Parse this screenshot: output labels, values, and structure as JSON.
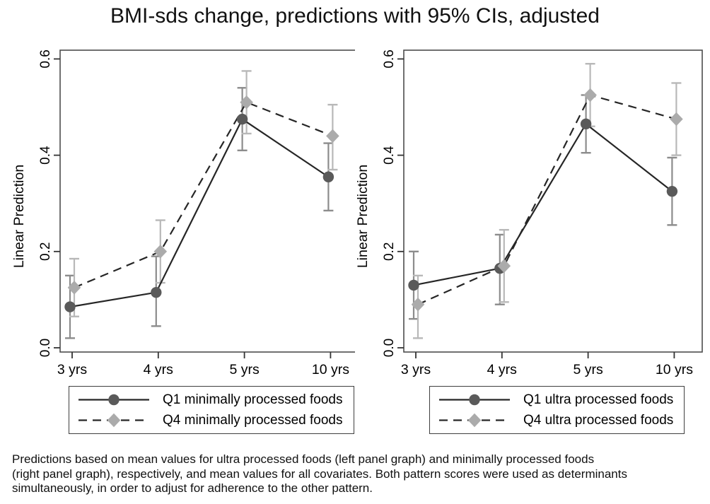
{
  "title": "BMI-sds change, predictions with 95% CIs, adjusted",
  "caption_lines": [
    "Predictions based on mean values for ultra processed foods (left panel graph) and minimally processed foods",
    "(right panel graph), respectively, and mean values for all covariates. Both pattern scores were used as determinants",
    "simultaneously, in order to adjust for adherence to the other pattern."
  ],
  "colors": {
    "background": "#ffffff",
    "frame": "#4d4d4d",
    "tick": "#333333",
    "text": "#000000",
    "q1_marker": "#5a5a5a",
    "q1_line": "#262626",
    "q1_ci": "#8c8c8c",
    "q4_marker": "#ababab",
    "q4_line": "#262626",
    "q4_ci": "#b8b8b8"
  },
  "chart_data": [
    {
      "type": "line",
      "panel": "left",
      "categories": [
        "3 yrs",
        "4 yrs",
        "5 yrs",
        "10 yrs"
      ],
      "xlabel": "",
      "ylabel": "Linear Prediction",
      "yticks": [
        0.0,
        0.2,
        0.4,
        0.6
      ],
      "ylim": [
        -0.01,
        0.62
      ],
      "grid": false,
      "legend_position": "below",
      "series": [
        {
          "name": "Q1 minimally processed foods",
          "marker": "circle",
          "line_style": "solid",
          "marker_color": "#5a5a5a",
          "line_color": "#262626",
          "ci_color": "#8c8c8c",
          "values": [
            0.085,
            0.115,
            0.475,
            0.355
          ],
          "ci_low": [
            0.02,
            0.045,
            0.41,
            0.285
          ],
          "ci_high": [
            0.15,
            0.19,
            0.54,
            0.425
          ]
        },
        {
          "name": "Q4 minimally processed foods",
          "marker": "diamond",
          "line_style": "dash",
          "marker_color": "#ababab",
          "line_color": "#262626",
          "ci_color": "#b8b8b8",
          "values": [
            0.125,
            0.2,
            0.51,
            0.44
          ],
          "ci_low": [
            0.065,
            0.135,
            0.445,
            0.37
          ],
          "ci_high": [
            0.185,
            0.265,
            0.575,
            0.505
          ]
        }
      ]
    },
    {
      "type": "line",
      "panel": "right",
      "categories": [
        "3 yrs",
        "4 yrs",
        "5 yrs",
        "10 yrs"
      ],
      "xlabel": "",
      "ylabel": "Linear Prediction",
      "yticks": [
        0.0,
        0.2,
        0.4,
        0.6
      ],
      "ylim": [
        -0.01,
        0.62
      ],
      "grid": false,
      "legend_position": "below",
      "series": [
        {
          "name": "Q1 ultra processed foods",
          "marker": "circle",
          "line_style": "solid",
          "marker_color": "#5a5a5a",
          "line_color": "#262626",
          "ci_color": "#8c8c8c",
          "values": [
            0.13,
            0.165,
            0.465,
            0.325
          ],
          "ci_low": [
            0.06,
            0.09,
            0.405,
            0.255
          ],
          "ci_high": [
            0.2,
            0.235,
            0.525,
            0.395
          ]
        },
        {
          "name": "Q4 ultra processed foods",
          "marker": "diamond",
          "line_style": "dash",
          "marker_color": "#ababab",
          "line_color": "#262626",
          "ci_color": "#b8b8b8",
          "values": [
            0.09,
            0.17,
            0.525,
            0.475
          ],
          "ci_low": [
            0.02,
            0.095,
            0.46,
            0.4
          ],
          "ci_high": [
            0.15,
            0.245,
            0.59,
            0.55
          ]
        }
      ]
    }
  ]
}
